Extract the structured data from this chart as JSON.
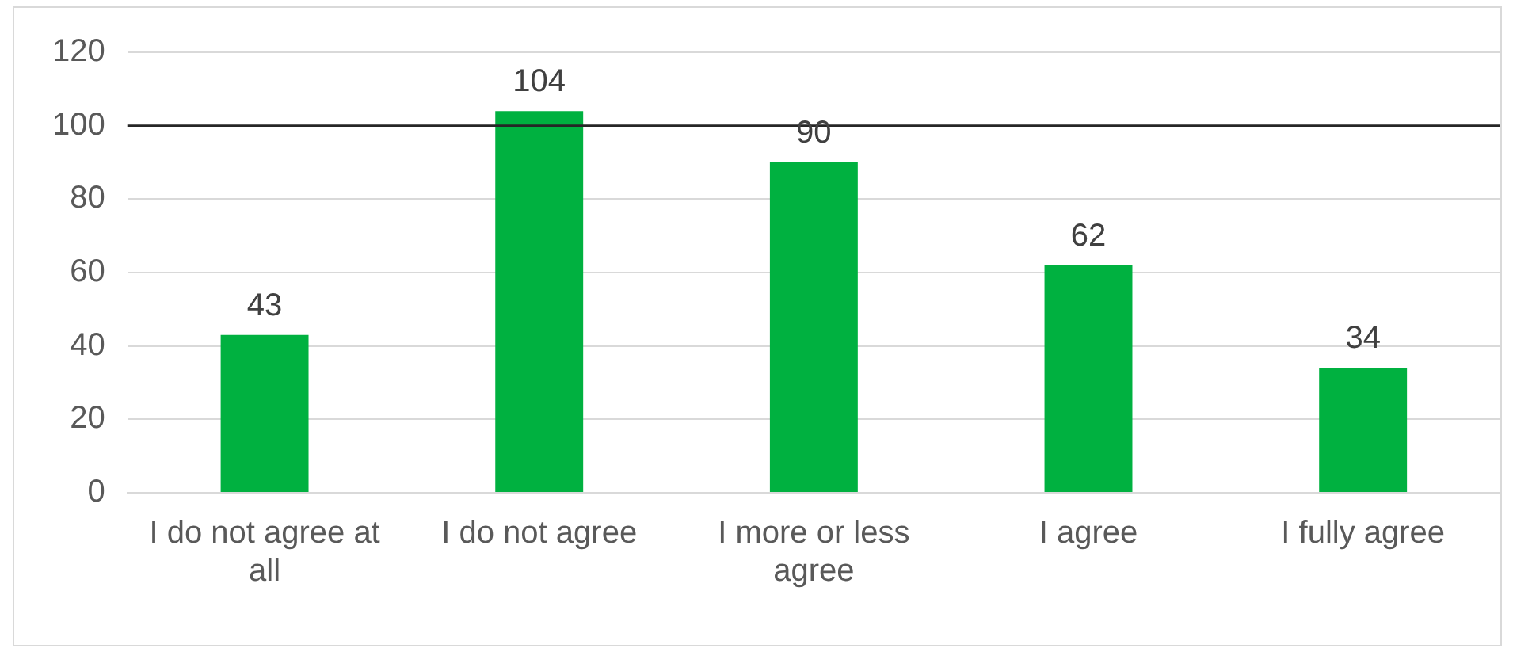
{
  "chart_data": {
    "type": "bar",
    "categories": [
      "I do not agree at all",
      "I do not agree",
      "I more or less agree",
      "I agree",
      "I fully agree"
    ],
    "values": [
      43,
      104,
      90,
      62,
      34
    ],
    "color": "#00b140",
    "ylim": [
      0,
      120
    ],
    "yticks": [
      0,
      20,
      40,
      60,
      80,
      100,
      120
    ],
    "grid": "y",
    "data_labels": true,
    "ref_lines": [
      {
        "axis": "y",
        "value": 100,
        "color": "#262626"
      }
    ]
  }
}
